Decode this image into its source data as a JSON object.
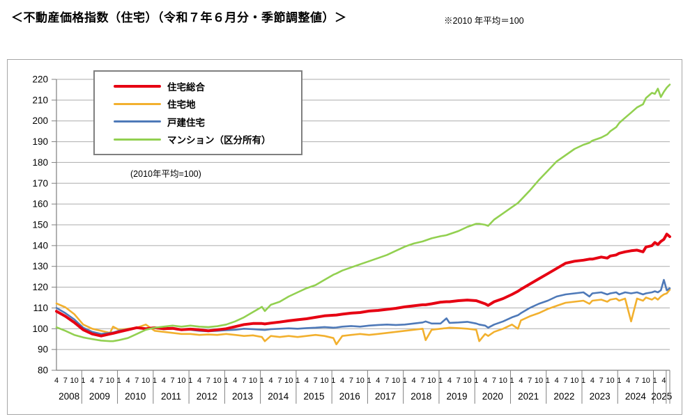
{
  "title": "＜不動産価格指数（住宅）（令和７年６月分・季節調整値）＞",
  "header_note": "※2010 年平均＝100",
  "legend_note": "(2010年平均=100)",
  "chart_data": {
    "type": "line",
    "title": "不動産価格指数（住宅）令和7年6月分・季節調整値",
    "xlabel": "",
    "ylabel": "",
    "ylim": [
      80,
      220
    ],
    "ytick_step": 10,
    "grid": "horizontal",
    "legend_position": "top-left-inside",
    "x_note": "月次（2008年4月〜2025年6月）",
    "x": [
      "2008-04",
      "2008-07",
      "2008-10",
      "2009-01",
      "2009-04",
      "2009-07",
      "2009-10",
      "2009-11",
      "2010-01",
      "2010-04",
      "2010-07",
      "2010-10",
      "2011-01",
      "2011-04",
      "2011-07",
      "2011-10",
      "2012-01",
      "2012-04",
      "2012-07",
      "2012-10",
      "2013-01",
      "2013-04",
      "2013-07",
      "2013-10",
      "2014-01",
      "2014-02",
      "2014-04",
      "2014-07",
      "2014-10",
      "2015-01",
      "2015-04",
      "2015-07",
      "2015-10",
      "2016-01",
      "2016-02",
      "2016-04",
      "2016-07",
      "2016-10",
      "2017-01",
      "2017-04",
      "2017-07",
      "2017-10",
      "2018-01",
      "2018-04",
      "2018-07",
      "2018-08",
      "2018-10",
      "2019-01",
      "2019-03",
      "2019-04",
      "2019-07",
      "2019-10",
      "2020-01",
      "2020-02",
      "2020-04",
      "2020-05",
      "2020-07",
      "2020-10",
      "2021-01",
      "2021-03",
      "2021-04",
      "2021-07",
      "2021-10",
      "2022-01",
      "2022-04",
      "2022-07",
      "2022-10",
      "2023-01",
      "2023-03",
      "2023-04",
      "2023-07",
      "2023-09",
      "2023-10",
      "2023-12",
      "2024-01",
      "2024-03",
      "2024-05",
      "2024-07",
      "2024-09",
      "2024-10",
      "2024-12",
      "2025-01",
      "2025-02",
      "2025-03",
      "2025-04",
      "2025-05",
      "2025-06"
    ],
    "series": [
      {
        "name": "住宅総合",
        "color": "#E60012",
        "width": 4,
        "z": 2,
        "values": [
          108.4,
          106.0,
          103.0,
          99.5,
          97.5,
          96.5,
          97.5,
          97.8,
          98.5,
          99.5,
          100.5,
          100.0,
          100.5,
          100.0,
          100.2,
          99.5,
          99.8,
          99.5,
          99.0,
          99.5,
          100.0,
          101.0,
          102.0,
          102.5,
          102.5,
          102.3,
          102.7,
          103.2,
          103.8,
          104.3,
          104.8,
          105.5,
          106.2,
          106.5,
          106.6,
          107.0,
          107.5,
          107.8,
          108.5,
          108.8,
          109.3,
          109.8,
          110.5,
          111.0,
          111.5,
          111.5,
          112.0,
          112.8,
          113.0,
          113.0,
          113.5,
          113.8,
          113.5,
          113.0,
          112.0,
          111.2,
          113.0,
          114.5,
          116.5,
          118.0,
          119.0,
          121.5,
          124.0,
          126.5,
          129.0,
          131.5,
          132.5,
          133.0,
          133.5,
          133.5,
          134.5,
          134.0,
          135.0,
          135.5,
          136.3,
          137.0,
          137.5,
          137.8,
          137.0,
          139.3,
          140.0,
          141.5,
          140.5,
          142.0,
          143.0,
          145.5,
          144.3
        ]
      },
      {
        "name": "住宅地",
        "color": "#F2B02E",
        "width": 2.6,
        "z": 0,
        "values": [
          112.2,
          110.3,
          107.0,
          102.0,
          100.0,
          99.0,
          98.0,
          101.0,
          99.5,
          100.0,
          100.5,
          102.0,
          99.0,
          98.5,
          98.0,
          97.5,
          97.5,
          97.0,
          97.2,
          97.0,
          97.5,
          97.0,
          96.5,
          96.8,
          96.0,
          94.0,
          96.5,
          96.0,
          96.5,
          96.0,
          96.5,
          97.0,
          96.5,
          95.5,
          92.5,
          96.5,
          97.0,
          97.5,
          97.0,
          97.5,
          98.0,
          98.5,
          99.0,
          99.5,
          100.0,
          94.5,
          99.5,
          100.0,
          100.3,
          100.5,
          100.3,
          100.0,
          99.5,
          94.0,
          97.5,
          96.5,
          98.5,
          100.0,
          102.0,
          100.0,
          104.0,
          106.0,
          107.5,
          109.5,
          111.0,
          112.5,
          113.0,
          113.5,
          112.0,
          113.5,
          114.0,
          113.0,
          114.0,
          114.5,
          113.5,
          114.5,
          103.5,
          114.5,
          113.5,
          115.0,
          114.0,
          115.0,
          114.0,
          115.5,
          116.5,
          117.0,
          118.8
        ]
      },
      {
        "name": "戸建住宅",
        "color": "#4E79B8",
        "width": 2.6,
        "z": 1,
        "values": [
          110.0,
          107.5,
          104.5,
          100.5,
          98.5,
          97.5,
          98.0,
          98.2,
          99.0,
          99.8,
          100.3,
          100.0,
          100.3,
          99.8,
          100.0,
          99.5,
          99.5,
          99.0,
          98.8,
          99.0,
          99.3,
          99.5,
          100.0,
          99.8,
          99.5,
          99.4,
          99.8,
          100.0,
          100.2,
          100.0,
          100.3,
          100.5,
          100.8,
          100.5,
          100.6,
          101.0,
          101.3,
          101.0,
          101.5,
          101.8,
          102.0,
          101.8,
          102.0,
          102.5,
          103.0,
          103.5,
          102.5,
          102.5,
          105.0,
          102.8,
          103.0,
          103.3,
          102.5,
          102.0,
          101.5,
          100.5,
          102.0,
          103.5,
          105.5,
          106.5,
          107.5,
          110.0,
          112.0,
          113.5,
          115.5,
          116.5,
          117.0,
          117.5,
          115.5,
          117.0,
          117.5,
          116.5,
          117.0,
          117.5,
          116.5,
          117.5,
          117.0,
          117.5,
          116.5,
          117.0,
          117.5,
          118.0,
          117.5,
          118.5,
          123.5,
          118.5,
          119.5
        ]
      },
      {
        "name": "マンション（区分所有）",
        "color": "#92D050",
        "width": 2.6,
        "z": 3,
        "values": [
          100.7,
          99.0,
          97.0,
          95.8,
          95.0,
          94.3,
          94.0,
          94.0,
          94.5,
          95.5,
          97.5,
          99.5,
          100.5,
          101.0,
          101.5,
          101.0,
          101.5,
          101.0,
          100.8,
          101.2,
          102.0,
          103.5,
          105.5,
          108.0,
          110.5,
          108.5,
          111.5,
          113.0,
          115.5,
          117.5,
          119.5,
          121.0,
          123.5,
          126.0,
          126.6,
          128.0,
          129.5,
          131.0,
          132.5,
          134.0,
          135.5,
          137.5,
          139.5,
          141.0,
          142.0,
          142.5,
          143.5,
          144.5,
          145.0,
          145.5,
          147.0,
          149.0,
          150.5,
          150.5,
          150.0,
          149.5,
          152.5,
          155.5,
          158.5,
          160.5,
          162.0,
          166.5,
          171.5,
          176.0,
          180.5,
          183.5,
          186.5,
          188.5,
          189.5,
          190.5,
          192.0,
          193.5,
          195.0,
          197.0,
          199.0,
          201.5,
          204.0,
          206.5,
          208.0,
          211.0,
          213.5,
          213.0,
          215.5,
          211.5,
          214.0,
          216.0,
          217.5
        ]
      }
    ],
    "x_axis_years": [
      {
        "year": "2008",
        "months": [
          "4",
          "7",
          "10"
        ]
      },
      {
        "year": "2009",
        "months": [
          "1",
          "4",
          "7",
          "10"
        ]
      },
      {
        "year": "2010",
        "months": [
          "1",
          "4",
          "7",
          "10"
        ]
      },
      {
        "year": "2011",
        "months": [
          "1",
          "4",
          "7",
          "10"
        ]
      },
      {
        "year": "2012",
        "months": [
          "1",
          "4",
          "7",
          "10"
        ]
      },
      {
        "year": "2013",
        "months": [
          "1",
          "4",
          "7",
          "10"
        ]
      },
      {
        "year": "2014",
        "months": [
          "1",
          "4",
          "7",
          "10"
        ]
      },
      {
        "year": "2015",
        "months": [
          "1",
          "4",
          "7",
          "10"
        ]
      },
      {
        "year": "2016",
        "months": [
          "1",
          "4",
          "7",
          "10"
        ]
      },
      {
        "year": "2017",
        "months": [
          "1",
          "4",
          "7",
          "10"
        ]
      },
      {
        "year": "2018",
        "months": [
          "1",
          "4",
          "7",
          "10"
        ]
      },
      {
        "year": "2019",
        "months": [
          "1",
          "4",
          "7",
          "10"
        ]
      },
      {
        "year": "2020",
        "months": [
          "1",
          "4",
          "7",
          "10"
        ]
      },
      {
        "year": "2021",
        "months": [
          "1",
          "4",
          "7",
          "10"
        ]
      },
      {
        "year": "2022",
        "months": [
          "1",
          "4",
          "7",
          "10"
        ]
      },
      {
        "year": "2023",
        "months": [
          "1",
          "4",
          "7",
          "10"
        ]
      },
      {
        "year": "2024",
        "months": [
          "1",
          "4",
          "7",
          "10"
        ]
      },
      {
        "year": "2025",
        "months": [
          "1",
          "4"
        ]
      }
    ]
  }
}
